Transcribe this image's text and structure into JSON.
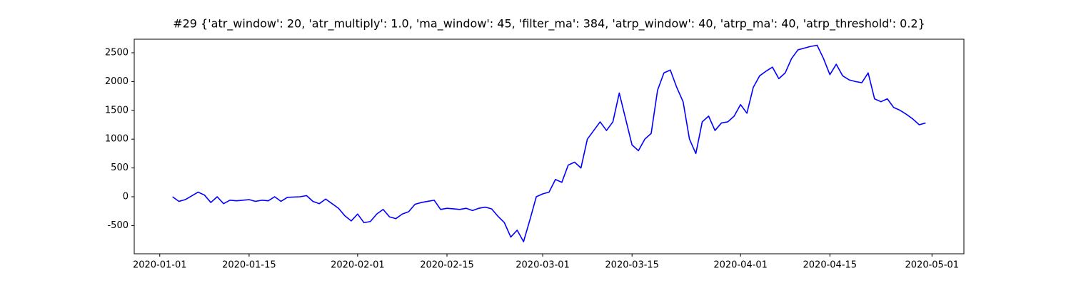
{
  "chart_data": {
    "type": "line",
    "title": "#29 {'atr_window': 20, 'atr_multiply': 1.0, 'ma_window': 45, 'filter_ma': 384, 'atrp_window': 40, 'atrp_ma': 40, 'atrp_threshold': 0.2}",
    "x": [
      "2020-01-03",
      "2020-01-04",
      "2020-01-05",
      "2020-01-07",
      "2020-01-08",
      "2020-01-09",
      "2020-01-10",
      "2020-01-11",
      "2020-01-12",
      "2020-01-13",
      "2020-01-15",
      "2020-01-16",
      "2020-01-17",
      "2020-01-18",
      "2020-01-19",
      "2020-01-20",
      "2020-01-21",
      "2020-01-23",
      "2020-01-24",
      "2020-01-25",
      "2020-01-26",
      "2020-01-27",
      "2020-01-28",
      "2020-01-29",
      "2020-01-30",
      "2020-01-31",
      "2020-02-01",
      "2020-02-02",
      "2020-02-03",
      "2020-02-04",
      "2020-02-05",
      "2020-02-06",
      "2020-02-07",
      "2020-02-08",
      "2020-02-09",
      "2020-02-10",
      "2020-02-11",
      "2020-02-12",
      "2020-02-13",
      "2020-02-14",
      "2020-02-15",
      "2020-02-16",
      "2020-02-17",
      "2020-02-18",
      "2020-02-19",
      "2020-02-20",
      "2020-02-21",
      "2020-02-22",
      "2020-02-23",
      "2020-02-24",
      "2020-02-25",
      "2020-02-26",
      "2020-02-27",
      "2020-02-28",
      "2020-02-29",
      "2020-03-01",
      "2020-03-02",
      "2020-03-03",
      "2020-03-04",
      "2020-03-05",
      "2020-03-06",
      "2020-03-07",
      "2020-03-08",
      "2020-03-09",
      "2020-03-10",
      "2020-03-11",
      "2020-03-12",
      "2020-03-13",
      "2020-03-14",
      "2020-03-15",
      "2020-03-16",
      "2020-03-17",
      "2020-03-18",
      "2020-03-19",
      "2020-03-20",
      "2020-03-21",
      "2020-03-22",
      "2020-03-23",
      "2020-03-24",
      "2020-03-25",
      "2020-03-26",
      "2020-03-27",
      "2020-03-28",
      "2020-03-29",
      "2020-03-30",
      "2020-03-31",
      "2020-04-01",
      "2020-04-02",
      "2020-04-03",
      "2020-04-04",
      "2020-04-05",
      "2020-04-06",
      "2020-04-07",
      "2020-04-08",
      "2020-04-09",
      "2020-04-10",
      "2020-04-11",
      "2020-04-12",
      "2020-04-13",
      "2020-04-14",
      "2020-04-15",
      "2020-04-16",
      "2020-04-17",
      "2020-04-18",
      "2020-04-19",
      "2020-04-20",
      "2020-04-21",
      "2020-04-22",
      "2020-04-23",
      "2020-04-24",
      "2020-04-25",
      "2020-04-26",
      "2020-04-27",
      "2020-04-28",
      "2020-04-29",
      "2020-04-30"
    ],
    "series": [
      {
        "color": "#0000ff",
        "values": [
          0,
          -80,
          -50,
          80,
          30,
          -100,
          0,
          -120,
          -60,
          -70,
          -50,
          -80,
          -60,
          -70,
          0,
          -80,
          -10,
          0,
          20,
          -80,
          -120,
          -40,
          -120,
          -200,
          -330,
          -420,
          -300,
          -450,
          -430,
          -300,
          -220,
          -350,
          -380,
          -300,
          -260,
          -130,
          -100,
          -80,
          -60,
          -220,
          -200,
          -210,
          -220,
          -200,
          -240,
          -200,
          -180,
          -210,
          -340,
          -450,
          -700,
          -580,
          -780,
          -400,
          0,
          50,
          80,
          300,
          250,
          550,
          600,
          500,
          1000,
          1150,
          1300,
          1150,
          1300,
          1800,
          1350,
          900,
          800,
          1000,
          1100,
          1850,
          2150,
          2200,
          1900,
          1650,
          1000,
          750,
          1300,
          1400,
          1150,
          1280,
          1300,
          1400,
          1600,
          1450,
          1900,
          2100,
          2180,
          2250,
          2050,
          2150,
          2400,
          2550,
          2580,
          2610,
          2630,
          2400,
          2120,
          2300,
          2100,
          2030,
          2000,
          1980,
          2150,
          1700,
          1650,
          1700,
          1550,
          1500,
          1430,
          1350,
          1250,
          1280
        ]
      }
    ],
    "xlim": [
      "2019-12-28",
      "2020-05-06"
    ],
    "xticks": [
      "2020-01-01",
      "2020-01-15",
      "2020-02-01",
      "2020-02-15",
      "2020-03-01",
      "2020-03-15",
      "2020-04-01",
      "2020-04-15",
      "2020-05-01"
    ],
    "ylim": [
      -990,
      2735
    ],
    "yticks": [
      -500,
      0,
      500,
      1000,
      1500,
      2000,
      2500
    ]
  }
}
